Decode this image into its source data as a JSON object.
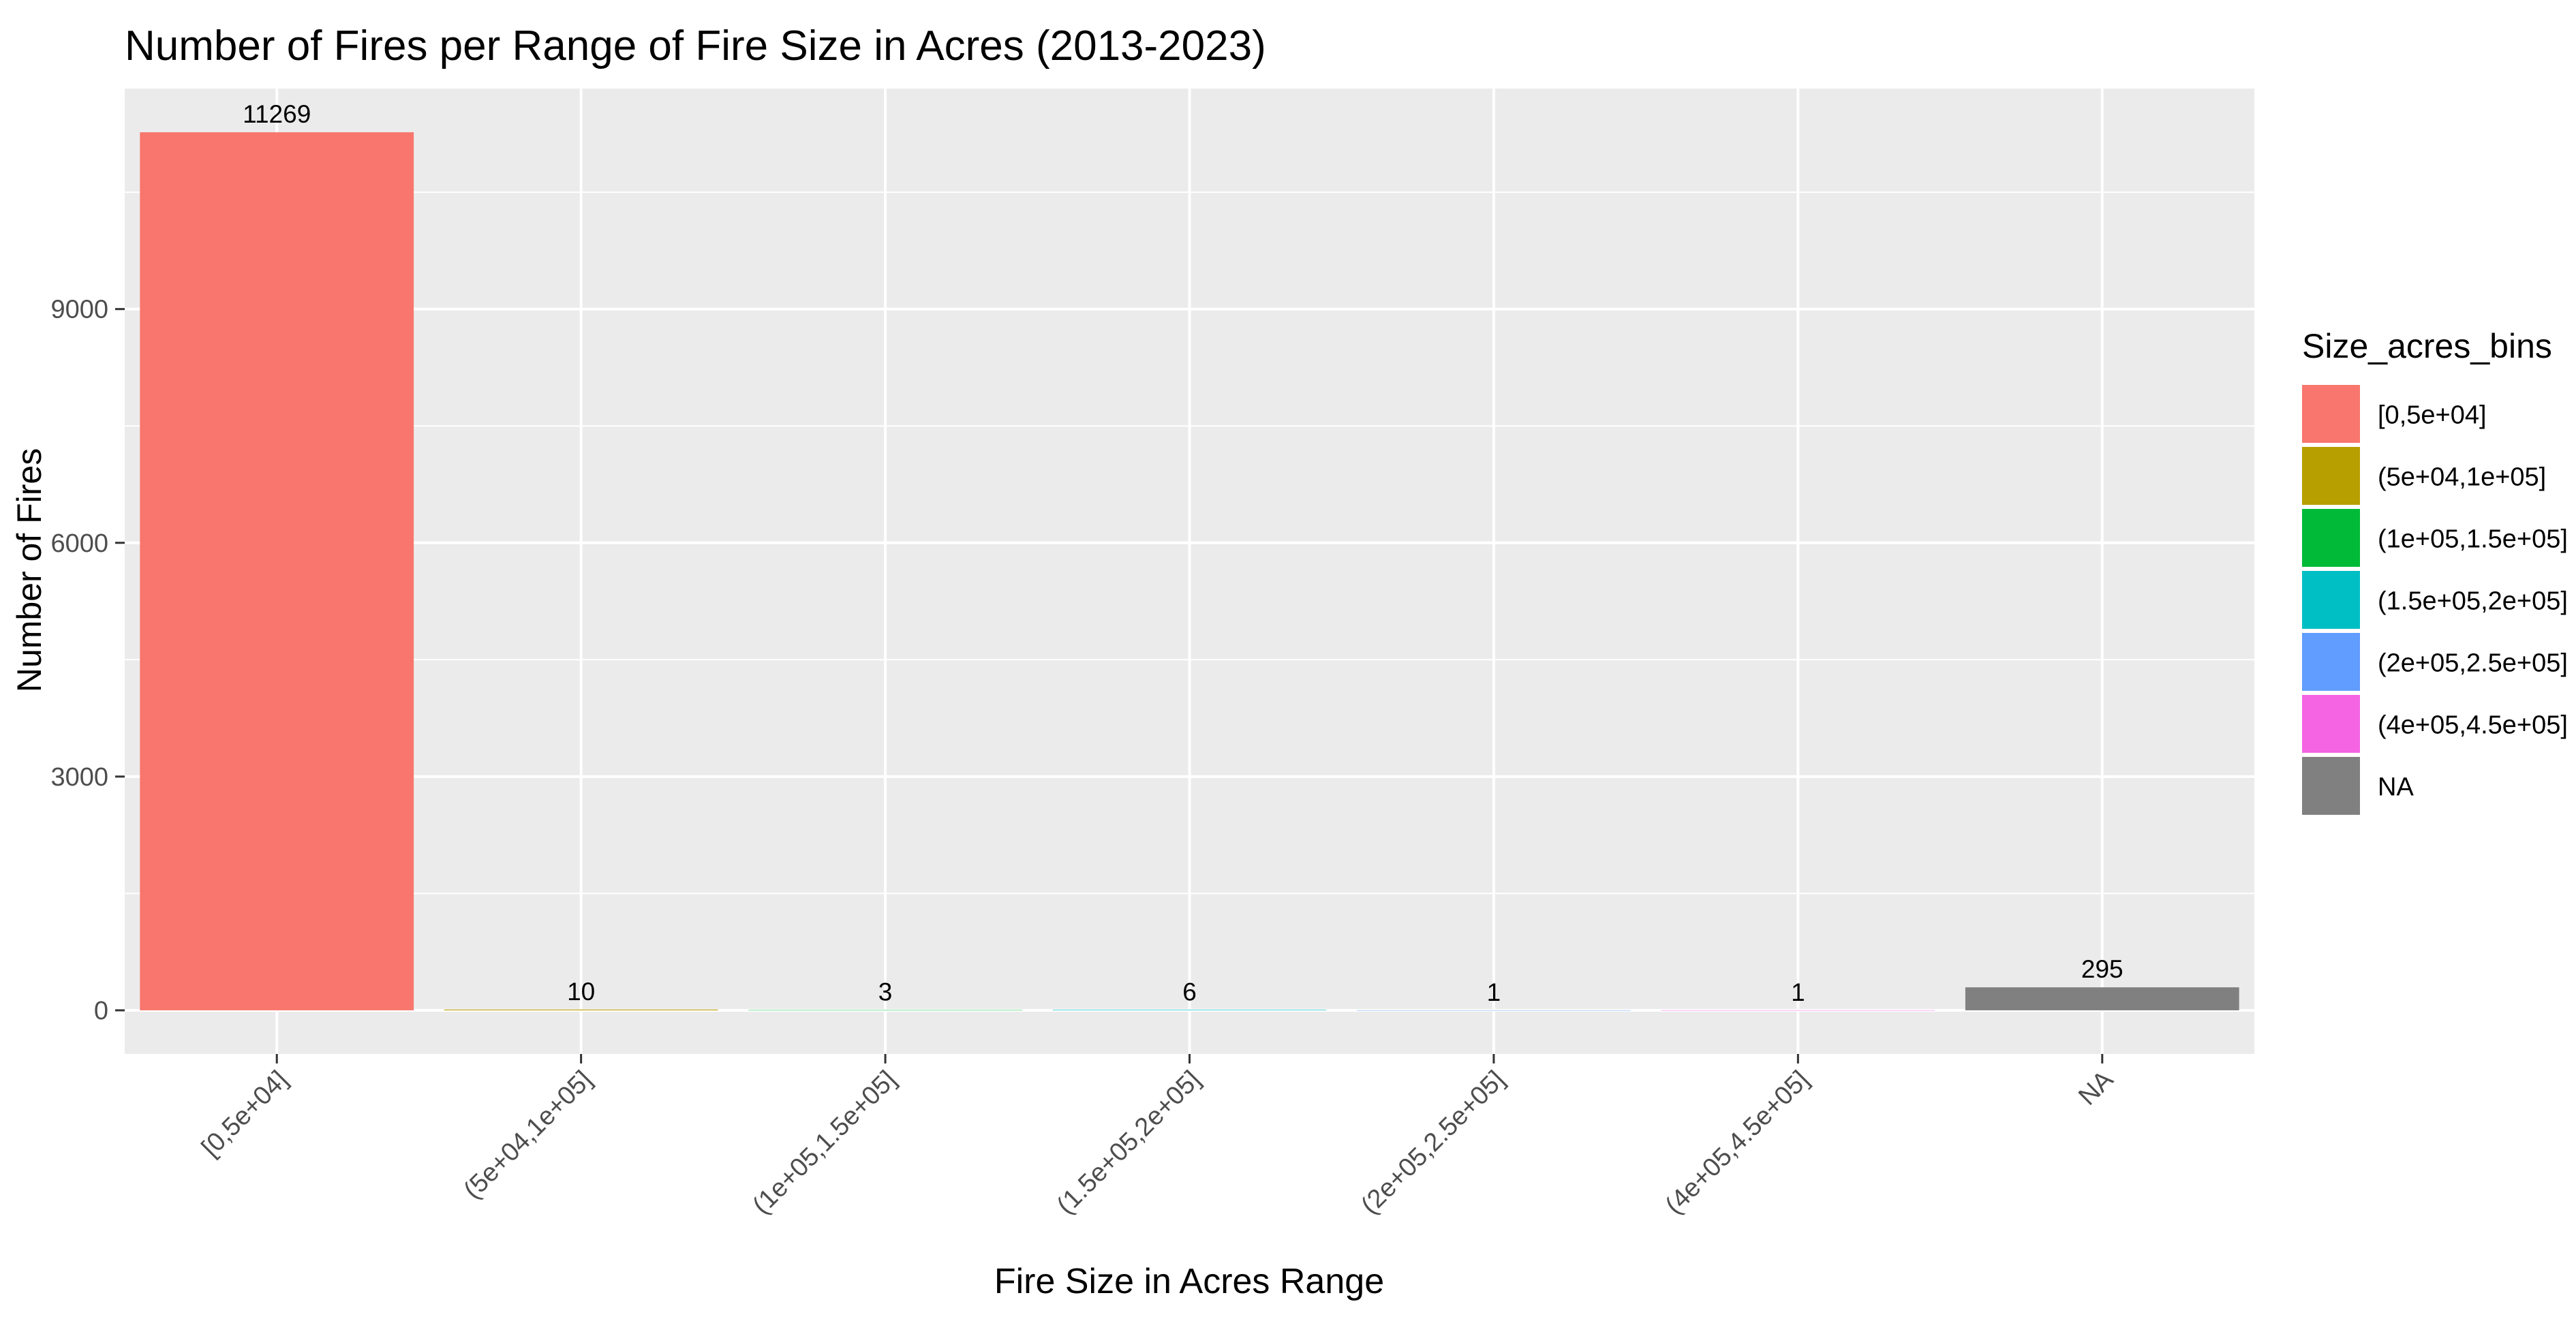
{
  "chart_data": {
    "type": "bar",
    "title": "Number of Fires per Range of Fire Size in Acres (2013-2023)",
    "xlabel": "Fire Size in Acres Range",
    "ylabel": "Number of Fires",
    "categories": [
      "[0,5e+04]",
      "(5e+04,1e+05]",
      "(1e+05,1.5e+05]",
      "(1.5e+05,2e+05]",
      "(2e+05,2.5e+05]",
      "(4e+05,4.5e+05]",
      "NA"
    ],
    "values": [
      11269,
      10,
      3,
      6,
      1,
      1,
      295
    ],
    "data_labels": [
      "11269",
      "10",
      "3",
      "6",
      "1",
      "1",
      "295"
    ],
    "ylim": [
      -560,
      11830
    ],
    "y_ticks": [
      0,
      3000,
      6000,
      9000
    ],
    "y_tick_labels": [
      "0",
      "3000",
      "6000",
      "9000"
    ],
    "grid": true,
    "legend": {
      "title": "Size_acres_bins",
      "placement": "right",
      "entries": [
        "[0,5e+04]",
        "(5e+04,1e+05]",
        "(1e+05,1.5e+05]",
        "(1.5e+05,2e+05]",
        "(2e+05,2.5e+05]",
        "(4e+05,4.5e+05]",
        "NA"
      ]
    },
    "colors": [
      "#F8766D",
      "#B79F00",
      "#00BA38",
      "#00BFC4",
      "#619CFF",
      "#F564E3",
      "#808080"
    ],
    "panel_background": "#EBEBEB",
    "grid_color": "#FFFFFF"
  }
}
